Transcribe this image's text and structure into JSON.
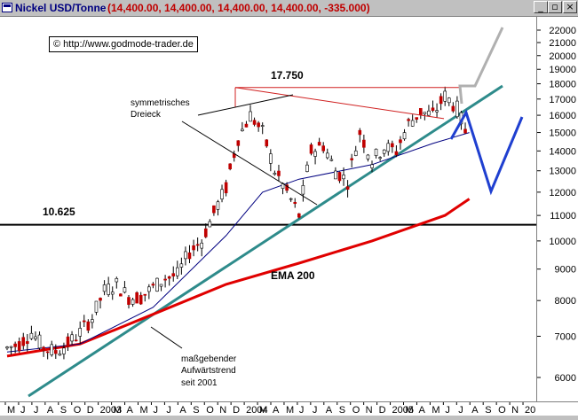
{
  "window": {
    "title": "Nickel USD/Tonne",
    "values": "(14,400.00, 14,400.00, 14,400.00, 14,400.00, -335.000)",
    "minimize_glyph": "_",
    "restore_glyph": "▫",
    "close_glyph": "×"
  },
  "copyright": "© http://www.godmode-trader.de",
  "chart_data": {
    "type": "line",
    "title": "Nickel USD/Tonne",
    "scale": "log",
    "ylim": [
      5500,
      22800
    ],
    "yticks": [
      6000,
      7000,
      8000,
      9000,
      10000,
      11000,
      12000,
      13000,
      14000,
      15000,
      16000,
      17000,
      18000,
      19000,
      20000,
      21000,
      22000
    ],
    "xticks": [
      "M",
      "J",
      "J",
      "A",
      "S",
      "O",
      "D",
      "2003",
      "M",
      "A",
      "M",
      "J",
      "J",
      "A",
      "S",
      "O",
      "N",
      "D",
      "2004",
      "M",
      "A",
      "M",
      "J",
      "J",
      "A",
      "S",
      "O",
      "N",
      "D",
      "2005",
      "M",
      "A",
      "M",
      "J",
      "J",
      "A",
      "S",
      "O",
      "N",
      "20"
    ],
    "price_approx": [
      {
        "x": "2002-05",
        "y": 6700
      },
      {
        "x": "2002-06",
        "y": 6800
      },
      {
        "x": "2002-07",
        "y": 7100
      },
      {
        "x": "2002-08",
        "y": 6700
      },
      {
        "x": "2002-09",
        "y": 6600
      },
      {
        "x": "2002-10",
        "y": 6800
      },
      {
        "x": "2002-11",
        "y": 7100
      },
      {
        "x": "2002-12",
        "y": 7500
      },
      {
        "x": "2003-01",
        "y": 8300
      },
      {
        "x": "2003-02",
        "y": 8500
      },
      {
        "x": "2003-03",
        "y": 8100
      },
      {
        "x": "2003-04",
        "y": 8100
      },
      {
        "x": "2003-05",
        "y": 8400
      },
      {
        "x": "2003-06",
        "y": 8700
      },
      {
        "x": "2003-07",
        "y": 8800
      },
      {
        "x": "2003-08",
        "y": 9600
      },
      {
        "x": "2003-09",
        "y": 10000
      },
      {
        "x": "2003-10",
        "y": 11100
      },
      {
        "x": "2003-11",
        "y": 12200
      },
      {
        "x": "2003-12",
        "y": 14700
      },
      {
        "x": "2004-01",
        "y": 16000
      },
      {
        "x": "2004-02",
        "y": 15000
      },
      {
        "x": "2004-03",
        "y": 13000
      },
      {
        "x": "2004-04",
        "y": 12000
      },
      {
        "x": "2004-05",
        "y": 11000
      },
      {
        "x": "2004-06",
        "y": 14000
      },
      {
        "x": "2004-07",
        "y": 14300
      },
      {
        "x": "2004-08",
        "y": 13000
      },
      {
        "x": "2004-09",
        "y": 12500
      },
      {
        "x": "2004-10",
        "y": 15000
      },
      {
        "x": "2004-11",
        "y": 13500
      },
      {
        "x": "2004-12",
        "y": 14200
      },
      {
        "x": "2005-01",
        "y": 14000
      },
      {
        "x": "2005-02",
        "y": 15500
      },
      {
        "x": "2005-03",
        "y": 16200
      },
      {
        "x": "2005-04",
        "y": 16000
      },
      {
        "x": "2005-05",
        "y": 17200
      },
      {
        "x": "2005-06",
        "y": 16400
      },
      {
        "x": "2005-07",
        "y": 14400
      }
    ],
    "ema200_approx": [
      {
        "x": "2002-05",
        "y": 6500
      },
      {
        "x": "2002-11",
        "y": 6800
      },
      {
        "x": "2003-05",
        "y": 7600
      },
      {
        "x": "2003-11",
        "y": 8500
      },
      {
        "x": "2004-05",
        "y": 9200
      },
      {
        "x": "2004-11",
        "y": 10000
      },
      {
        "x": "2005-05",
        "y": 11000
      },
      {
        "x": "2005-07",
        "y": 11700
      }
    ],
    "ma_approx": [
      {
        "x": "2002-05",
        "y": 6600
      },
      {
        "x": "2002-11",
        "y": 6800
      },
      {
        "x": "2003-05",
        "y": 7800
      },
      {
        "x": "2003-11",
        "y": 10200
      },
      {
        "x": "2004-02",
        "y": 12000
      },
      {
        "x": "2004-05",
        "y": 12600
      },
      {
        "x": "2004-11",
        "y": 13300
      },
      {
        "x": "2005-04",
        "y": 14400
      },
      {
        "x": "2005-07",
        "y": 15000
      }
    ],
    "level_support": 10625,
    "level_resistance": 17750,
    "annotations": {
      "resistance_label": "17.750",
      "support_label": "10.625",
      "triangle_label_1": "symmetrisches",
      "triangle_label_2": "Dreieck",
      "ema_label": "EMA 200",
      "trend_label_1": "maßgebender",
      "trend_label_2": "Aufwärtstrend",
      "trend_label_3": "seit 2001"
    },
    "colors": {
      "price": "#c00000",
      "ema200": "#e00000",
      "ma": "#000080",
      "trendline": "#2e8b8b",
      "triangle": "#d02020",
      "scenario_down": "#1f3fd0",
      "scenario_up": "#b0b0b0"
    }
  }
}
